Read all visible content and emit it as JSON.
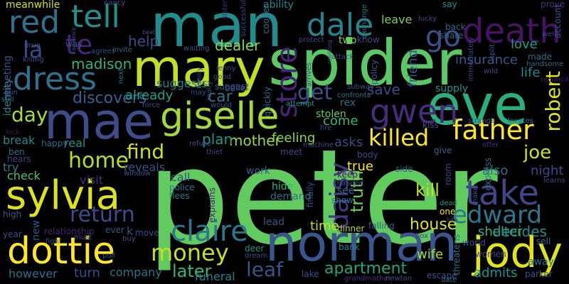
{
  "words": [
    {
      "text": "peter",
      "color": "#62cb5f"
    },
    {
      "text": "spider",
      "color": "#5ac864"
    },
    {
      "text": "man",
      "color": "#228c8d"
    },
    {
      "text": "mary",
      "color": "#c2df23"
    },
    {
      "text": "eve",
      "color": "#2ab07f"
    },
    {
      "text": "norman",
      "color": "#3a548c"
    },
    {
      "text": "mae",
      "color": "#3e4c8a"
    },
    {
      "text": "giselle",
      "color": "#a2da37"
    },
    {
      "text": "sylvia",
      "color": "#dde318"
    },
    {
      "text": "dottie",
      "color": "#fde725"
    },
    {
      "text": "jody",
      "color": "#e2e418"
    },
    {
      "text": "take",
      "color": "#404688"
    },
    {
      "text": "father",
      "color": "#fde725"
    },
    {
      "text": "gwen",
      "color": "#472c7a"
    },
    {
      "text": "death",
      "color": "#471365"
    },
    {
      "text": "dale",
      "color": "#25848e"
    },
    {
      "text": "go",
      "color": "#3b518b"
    },
    {
      "text": "dress",
      "color": "#2c728e"
    },
    {
      "text": "red",
      "color": "#2d718e"
    },
    {
      "text": "tell",
      "color": "#21908d"
    },
    {
      "text": "claire",
      "color": "#2a778e"
    },
    {
      "text": "edward",
      "color": "#2a788e"
    },
    {
      "text": "store",
      "color": "#482475"
    },
    {
      "text": "daisy",
      "color": "#453882"
    },
    {
      "text": "money",
      "color": "#c5e021"
    },
    {
      "text": "killed",
      "color": "#fde725"
    },
    {
      "text": "return",
      "color": "#3e4a89"
    },
    {
      "text": "home",
      "color": "#b5de2b"
    },
    {
      "text": "day",
      "color": "#a8db34"
    },
    {
      "text": "la",
      "color": "#3e4989"
    },
    {
      "text": "te",
      "color": "#482677"
    },
    {
      "text": "find",
      "color": "#c8e020"
    },
    {
      "text": "joe",
      "color": "#cde11d"
    },
    {
      "text": "robert",
      "color": "#dde318"
    },
    {
      "text": "leaf",
      "color": "#3b528b"
    },
    {
      "text": "get",
      "color": "#3d4e8a"
    },
    {
      "text": "apartment",
      "color": "#20a386"
    },
    {
      "text": "later",
      "color": "#32b67a"
    },
    {
      "text": "kill",
      "color": "#c0df25"
    },
    {
      "text": "truth",
      "color": "#6ece58"
    },
    {
      "text": "mother",
      "color": "#95d840"
    },
    {
      "text": "plan",
      "color": "#1f968b"
    },
    {
      "text": "car",
      "color": "#2c738e"
    },
    {
      "text": "help",
      "color": "#3e4a89"
    },
    {
      "text": "dealer",
      "color": "#8bd646"
    },
    {
      "text": "madison",
      "color": "#2db27d"
    },
    {
      "text": "discovers",
      "color": "#34618d"
    },
    {
      "text": "house",
      "color": "#d8e219"
    },
    {
      "text": "time",
      "color": "#c2df23"
    },
    {
      "text": "shelter",
      "color": "#2ab07f"
    },
    {
      "text": "decides",
      "color": "#228d8d"
    },
    {
      "text": "save",
      "color": "#3e4989"
    },
    {
      "text": "friend",
      "color": "#375a8c"
    },
    {
      "text": "life",
      "color": "#24878e"
    },
    {
      "text": "insurance",
      "color": "#38588c"
    },
    {
      "text": "love",
      "color": "#1e9b8a"
    },
    {
      "text": "already",
      "color": "#1fa088"
    },
    {
      "text": "feeling",
      "color": "#8bd646"
    },
    {
      "text": "come",
      "color": "#35b779"
    },
    {
      "text": "asks",
      "color": "#3f4788"
    },
    {
      "text": "true",
      "color": "#fde725"
    },
    {
      "text": "night",
      "color": "#3e4a89"
    },
    {
      "text": "also",
      "color": "#2e6e8e"
    },
    {
      "text": "turn",
      "color": "#3e4a89"
    },
    {
      "text": "wife",
      "color": "#addc30"
    },
    {
      "text": "admits",
      "color": "#1f958b"
    },
    {
      "text": "company",
      "color": "#2c738e"
    },
    {
      "text": "funeral",
      "color": "#26828e"
    },
    {
      "text": "however",
      "color": "#2e6f8e"
    },
    {
      "text": "visit",
      "color": "#46327e"
    },
    {
      "text": "reveals",
      "color": "#3c4f8a"
    },
    {
      "text": "check",
      "color": "#4ac16d"
    },
    {
      "text": "call",
      "color": "#3c4f8a"
    },
    {
      "text": "break",
      "color": "#24878e"
    },
    {
      "text": "try",
      "color": "#2a788e"
    },
    {
      "text": "identity",
      "color": "#26828e"
    },
    {
      "text": "meeting",
      "color": "#3d4e8a"
    },
    {
      "text": "meanwhile",
      "color": "#d5e21a"
    },
    {
      "text": "ability",
      "color": "#23888e"
    },
    {
      "text": "leave",
      "color": "#7ad151"
    },
    {
      "text": "suggests",
      "color": "#277f8e"
    },
    {
      "text": "real",
      "color": "#1f948c"
    },
    {
      "text": "happy",
      "color": "#31688e"
    },
    {
      "text": "suggest",
      "color": "#38588c"
    },
    {
      "text": "rex",
      "color": "#2f6c8e"
    },
    {
      "text": "two",
      "color": "#8bd646"
    },
    {
      "text": "say",
      "color": "#21918c"
    },
    {
      "text": "prove",
      "color": "#46327e"
    },
    {
      "text": "account",
      "color": "#39558c"
    },
    {
      "text": "exchange",
      "color": "#29798e"
    },
    {
      "text": "policy",
      "color": "#375a8c"
    },
    {
      "text": "know",
      "color": "#3f4788"
    },
    {
      "text": "back",
      "color": "#31688e"
    },
    {
      "text": "share",
      "color": "#33638d"
    },
    {
      "text": "made",
      "color": "#2e6e8e"
    },
    {
      "text": "handsome",
      "color": "#306a8e"
    },
    {
      "text": "reconcile",
      "color": "#481f70"
    },
    {
      "text": "supply",
      "color": "#1f968b"
    },
    {
      "text": "kiss",
      "color": "#3b528b"
    },
    {
      "text": "stolen",
      "color": "#65cb5e"
    },
    {
      "text": "attempt",
      "color": "#1e9c89"
    },
    {
      "text": "fire",
      "color": "#3e4c8a"
    },
    {
      "text": "give",
      "color": "#34608d"
    },
    {
      "text": "offer",
      "color": "#46307e"
    },
    {
      "text": "keep",
      "color": "#48186a"
    },
    {
      "text": "body",
      "color": "#3f4889"
    },
    {
      "text": "side",
      "color": "#3b528b"
    },
    {
      "text": "room",
      "color": "#3f4889"
    },
    {
      "text": "express",
      "color": "#2d708e"
    },
    {
      "text": "see",
      "color": "#31688e"
    },
    {
      "text": "show",
      "color": "#2d718e"
    },
    {
      "text": "finally",
      "color": "#3e4a89"
    },
    {
      "text": "escape",
      "color": "#3b528b"
    },
    {
      "text": "threatens",
      "color": "#2c728e"
    },
    {
      "text": "one",
      "color": "#fde725"
    },
    {
      "text": "world",
      "color": "#3e4c8a"
    },
    {
      "text": "sell",
      "color": "#2c728e"
    },
    {
      "text": "away",
      "color": "#2e6e8e"
    },
    {
      "text": "parker",
      "color": "#3b528b"
    },
    {
      "text": "dead",
      "color": "#1f9e89"
    },
    {
      "text": "date",
      "color": "#31688e"
    },
    {
      "text": "women",
      "color": "#3e4989"
    },
    {
      "text": "bank",
      "color": "#24868e"
    },
    {
      "text": "falling",
      "color": "#38588c"
    },
    {
      "text": "lake",
      "color": "#3b528b"
    },
    {
      "text": "dinner",
      "color": "#a5db36"
    },
    {
      "text": "grandmother",
      "color": "#46307e"
    },
    {
      "text": "newton",
      "color": "#3b528b"
    },
    {
      "text": "demand",
      "color": "#2e6e8e"
    },
    {
      "text": "hide",
      "color": "#35b779"
    },
    {
      "text": "lead",
      "color": "#3b528b"
    },
    {
      "text": "work",
      "color": "#34618d"
    },
    {
      "text": "meet",
      "color": "#3e4989"
    },
    {
      "text": "dream",
      "color": "#3e4989"
    },
    {
      "text": "deer",
      "color": "#21918c"
    },
    {
      "text": "explains",
      "color": "#482576"
    },
    {
      "text": "police",
      "color": "#29798e"
    },
    {
      "text": "flees",
      "color": "#2a788e"
    },
    {
      "text": "ever",
      "color": "#3b528b"
    },
    {
      "text": "k",
      "color": "#3e4989"
    },
    {
      "text": "move",
      "color": "#3e4989"
    },
    {
      "text": "window",
      "color": "#3b528b"
    },
    {
      "text": "relationship",
      "color": "#482475"
    },
    {
      "text": "new",
      "color": "#3b528b"
    },
    {
      "text": "high",
      "color": "#39568c"
    },
    {
      "text": "year",
      "color": "#3e4c8a"
    },
    {
      "text": "ben",
      "color": "#2c728e"
    },
    {
      "text": "hears",
      "color": "#3f4788"
    },
    {
      "text": "lock",
      "color": "#471365"
    },
    {
      "text": "still",
      "color": "#2c728e"
    },
    {
      "text": "gun",
      "color": "#3b528b"
    },
    {
      "text": "killing",
      "color": "#3e4989"
    },
    {
      "text": "drug",
      "color": "#3b528b"
    },
    {
      "text": "way",
      "color": "#3b528b"
    },
    {
      "text": "agrees",
      "color": "#3e4989"
    },
    {
      "text": "beat",
      "color": "#3b528b"
    },
    {
      "text": "invite",
      "color": "#2e6e8e"
    },
    {
      "text": "advance",
      "color": "#3e4c8a"
    },
    {
      "text": "nancy",
      "color": "#3b528b"
    },
    {
      "text": "sister",
      "color": "#482475"
    },
    {
      "text": "successful",
      "color": "#3e4989"
    },
    {
      "text": "cooper",
      "color": "#2c728e"
    },
    {
      "text": "lenny",
      "color": "#3e4989"
    },
    {
      "text": "belief",
      "color": "#3b528b"
    },
    {
      "text": "good",
      "color": "#3e4989"
    },
    {
      "text": "family",
      "color": "#3e4989"
    },
    {
      "text": "really",
      "color": "#3e4989"
    },
    {
      "text": "waiting",
      "color": "#3b528b"
    },
    {
      "text": "may",
      "color": "#3e4989"
    },
    {
      "text": "would",
      "color": "#3b528b"
    },
    {
      "text": "force",
      "color": "#3e4989"
    },
    {
      "text": "quickly",
      "color": "#2e6e8e"
    },
    {
      "text": "realizing",
      "color": "#3b528b"
    },
    {
      "text": "attack",
      "color": "#3e4989"
    },
    {
      "text": "arrives",
      "color": "#3e4989"
    },
    {
      "text": "protect",
      "color": "#3e4989"
    },
    {
      "text": "subway",
      "color": "#3b528b"
    },
    {
      "text": "confronts",
      "color": "#2c728e"
    },
    {
      "text": "lucky",
      "color": "#3e4989"
    },
    {
      "text": "immediately",
      "color": "#3e4989"
    },
    {
      "text": "split",
      "color": "#3b528b"
    },
    {
      "text": "wild",
      "color": "#3e4989"
    },
    {
      "text": "strange",
      "color": "#3b528b"
    },
    {
      "text": "locates",
      "color": "#2c728e"
    },
    {
      "text": "learns",
      "color": "#3e4989"
    },
    {
      "text": "machine",
      "color": "#3e4989"
    },
    {
      "text": "refuse",
      "color": "#3b528b"
    },
    {
      "text": "thief",
      "color": "#3e4989"
    },
    {
      "text": "changed",
      "color": "#3b528b"
    },
    {
      "text": "box",
      "color": "#3e4989"
    },
    {
      "text": "make",
      "color": "#3b528b"
    },
    {
      "text": "bite",
      "color": "#3e4989"
    },
    {
      "text": "next",
      "color": "#2c728e"
    },
    {
      "text": "well",
      "color": "#3e4989"
    },
    {
      "text": "fight",
      "color": "#3b528b"
    },
    {
      "text": "must",
      "color": "#3e4989"
    },
    {
      "text": "buy",
      "color": "#3b528b"
    },
    {
      "text": "pull",
      "color": "#3e4989"
    }
  ]
}
